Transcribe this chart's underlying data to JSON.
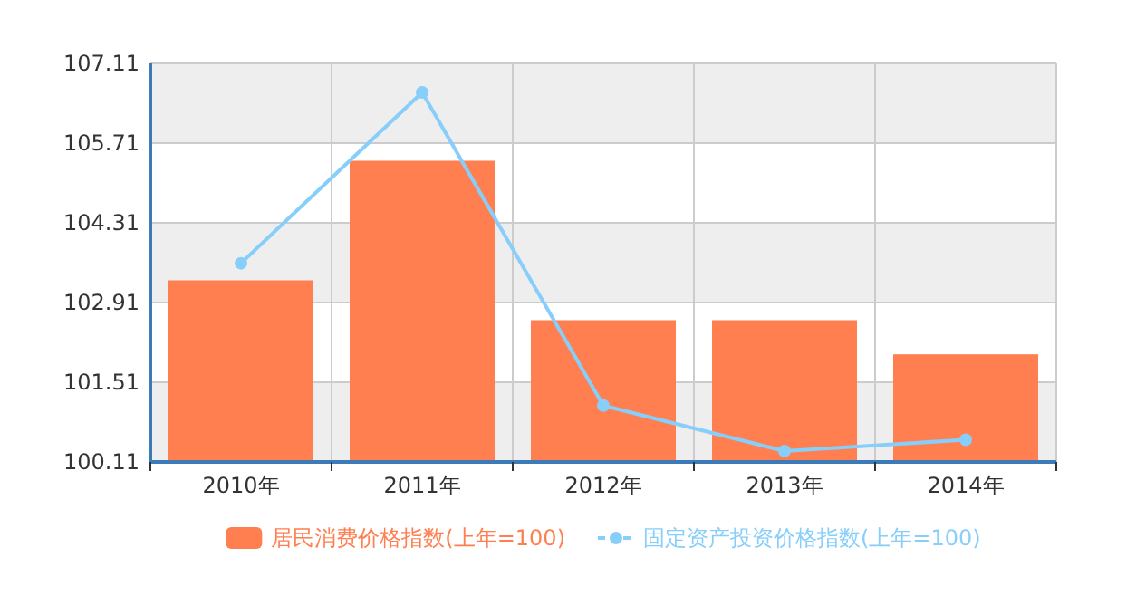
{
  "chart_data": {
    "type": "bar",
    "categories": [
      "2010年",
      "2011年",
      "2012年",
      "2013年",
      "2014年"
    ],
    "series": [
      {
        "name": "居民消费价格指数(上年=100)",
        "color": "#ff7f50",
        "values": [
          103.3,
          105.4,
          102.6,
          102.6,
          102.0
        ]
      },
      {
        "name": "固定资产投资价格指数(上年=100)",
        "type": "line",
        "color": "#87cefa",
        "values": [
          103.6,
          106.6,
          101.1,
          100.3,
          100.5
        ]
      }
    ],
    "ylim": [
      100.11,
      107.11
    ],
    "yticks": [
      100.11,
      101.51,
      102.91,
      104.31,
      105.71,
      107.11
    ],
    "grid": true,
    "legend": "bottom",
    "marker": "circle"
  }
}
